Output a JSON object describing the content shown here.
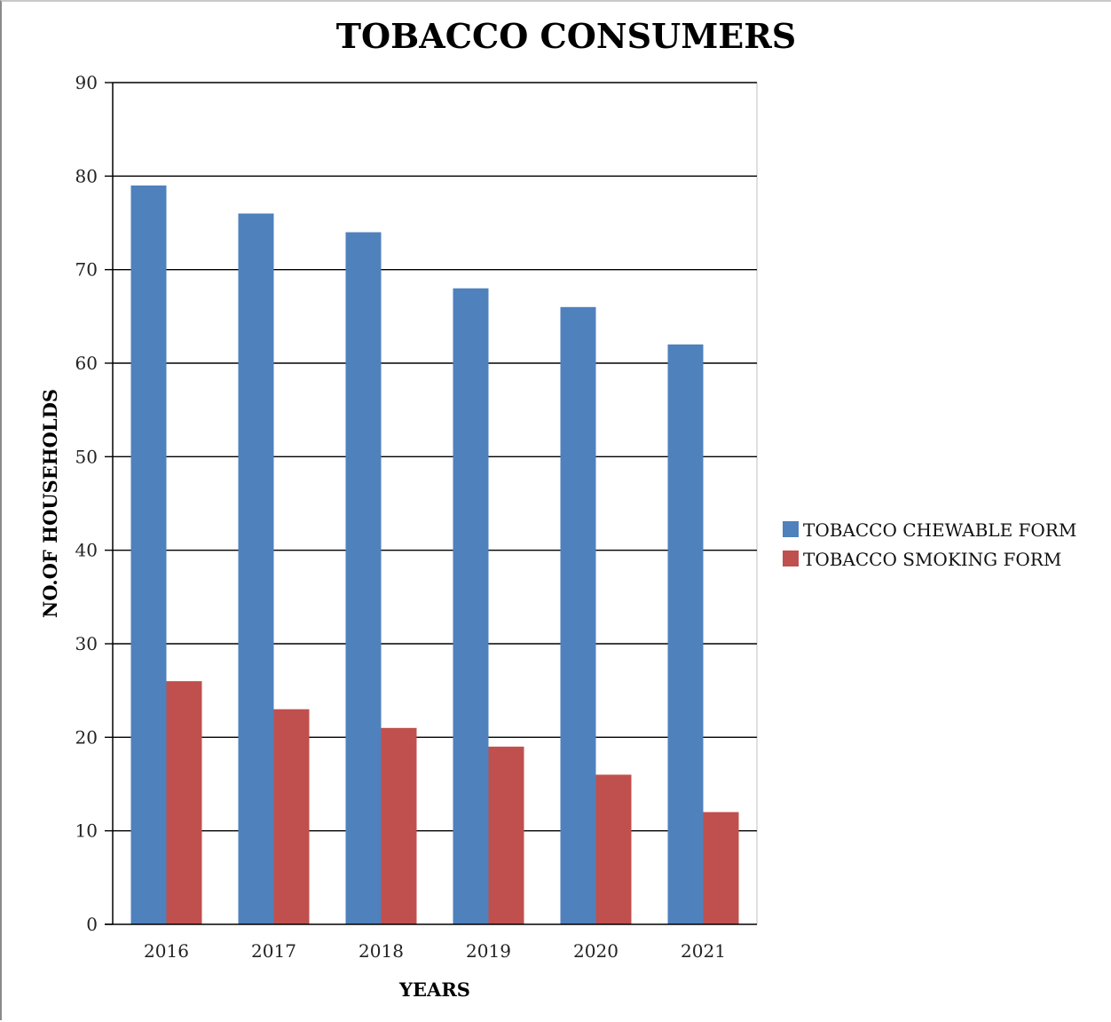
{
  "chart_data": {
    "type": "bar",
    "title": "TOBACCO CONSUMERS",
    "xlabel": "YEARS",
    "ylabel": "NO.OF HOUSEHOLDS",
    "categories": [
      "2016",
      "2017",
      "2018",
      "2019",
      "2020",
      "2021"
    ],
    "series": [
      {
        "name": "TOBACCO CHEWABLE FORM",
        "color": "#4f81bd",
        "values": [
          79,
          76,
          74,
          68,
          66,
          62
        ]
      },
      {
        "name": "TOBACCO SMOKING FORM",
        "color": "#c0504d",
        "values": [
          26,
          23,
          21,
          19,
          16,
          12
        ]
      }
    ],
    "ylim": [
      0,
      90
    ],
    "yticks": [
      0,
      10,
      20,
      30,
      40,
      50,
      60,
      70,
      80,
      90
    ],
    "grid": true,
    "legend_position": "right"
  }
}
